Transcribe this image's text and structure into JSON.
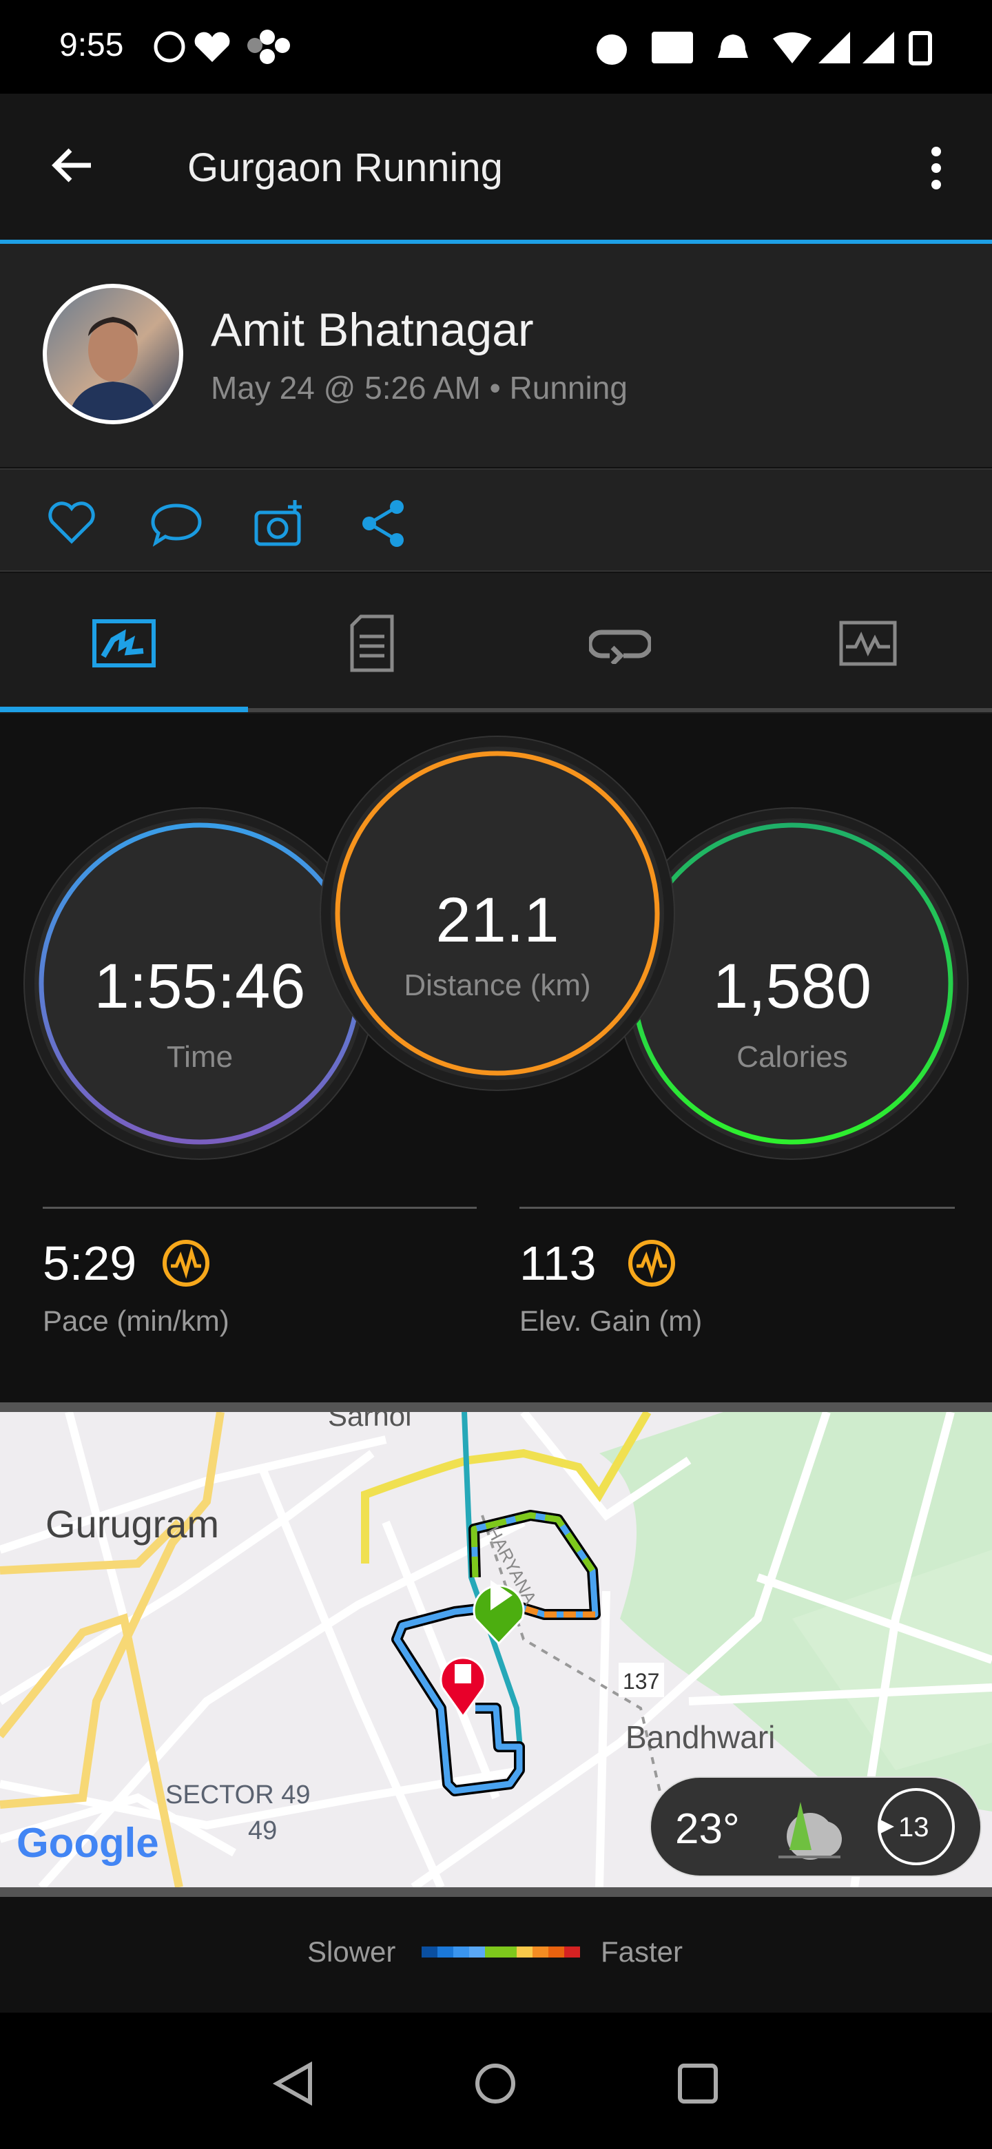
{
  "status_bar": {
    "time": "9:55",
    "icons": [
      "whatsapp-icon",
      "health-icon",
      "pinwheel-icon",
      "alarm-icon",
      "volte2-icon",
      "mute-icon",
      "wifi-icon",
      "signal-icon",
      "signal-icon",
      "battery-icon"
    ]
  },
  "app_bar": {
    "title": "Gurgaon Running",
    "back_icon": "arrow-left-icon",
    "menu_icon": "more-vertical-icon"
  },
  "profile": {
    "name": "Amit Bhatnagar",
    "subtitle": "May 24 @ 5:26 AM • Running"
  },
  "actions": [
    "heart-icon",
    "comment-icon",
    "add-photo-icon",
    "share-icon"
  ],
  "tabs": [
    {
      "icon": "overview-icon",
      "active": true
    },
    {
      "icon": "details-icon"
    },
    {
      "icon": "laps-icon"
    },
    {
      "icon": "charts-icon"
    }
  ],
  "stats": {
    "time": {
      "value": "1:55:46",
      "label": "Time"
    },
    "distance": {
      "value": "21.1",
      "label": "Distance (km)"
    },
    "calories": {
      "value": "1,580",
      "label": "Calories"
    },
    "pace": {
      "value": "5:29",
      "label": "Pace (min/km)"
    },
    "elevation": {
      "value": "113",
      "label": "Elev. Gain (m)"
    }
  },
  "map": {
    "labels": {
      "sarhol": "Sarhol",
      "gurugram": "Gurugram",
      "haryana": "HARYANA",
      "road": "137",
      "bandhwari": "Bandhwari",
      "sector": "SECTOR 49",
      "sector_num": "49"
    },
    "logo": "Google",
    "weather": {
      "temp": "23°",
      "wind": "13"
    }
  },
  "legend": {
    "slower": "Slower",
    "faster": "Faster",
    "colors": [
      "#0a4fa0",
      "#1b78d8",
      "#3a95ef",
      "#5aa8f5",
      "#7ec81c",
      "#7ec81c",
      "#f8c94a",
      "#f38c22",
      "#e8620f",
      "#d42222"
    ]
  },
  "colors": {
    "accent": "#1ea0e6",
    "time_ring": "#4a90e2",
    "distance_ring": "#f7941d",
    "calories_ring": "#22dd44"
  }
}
